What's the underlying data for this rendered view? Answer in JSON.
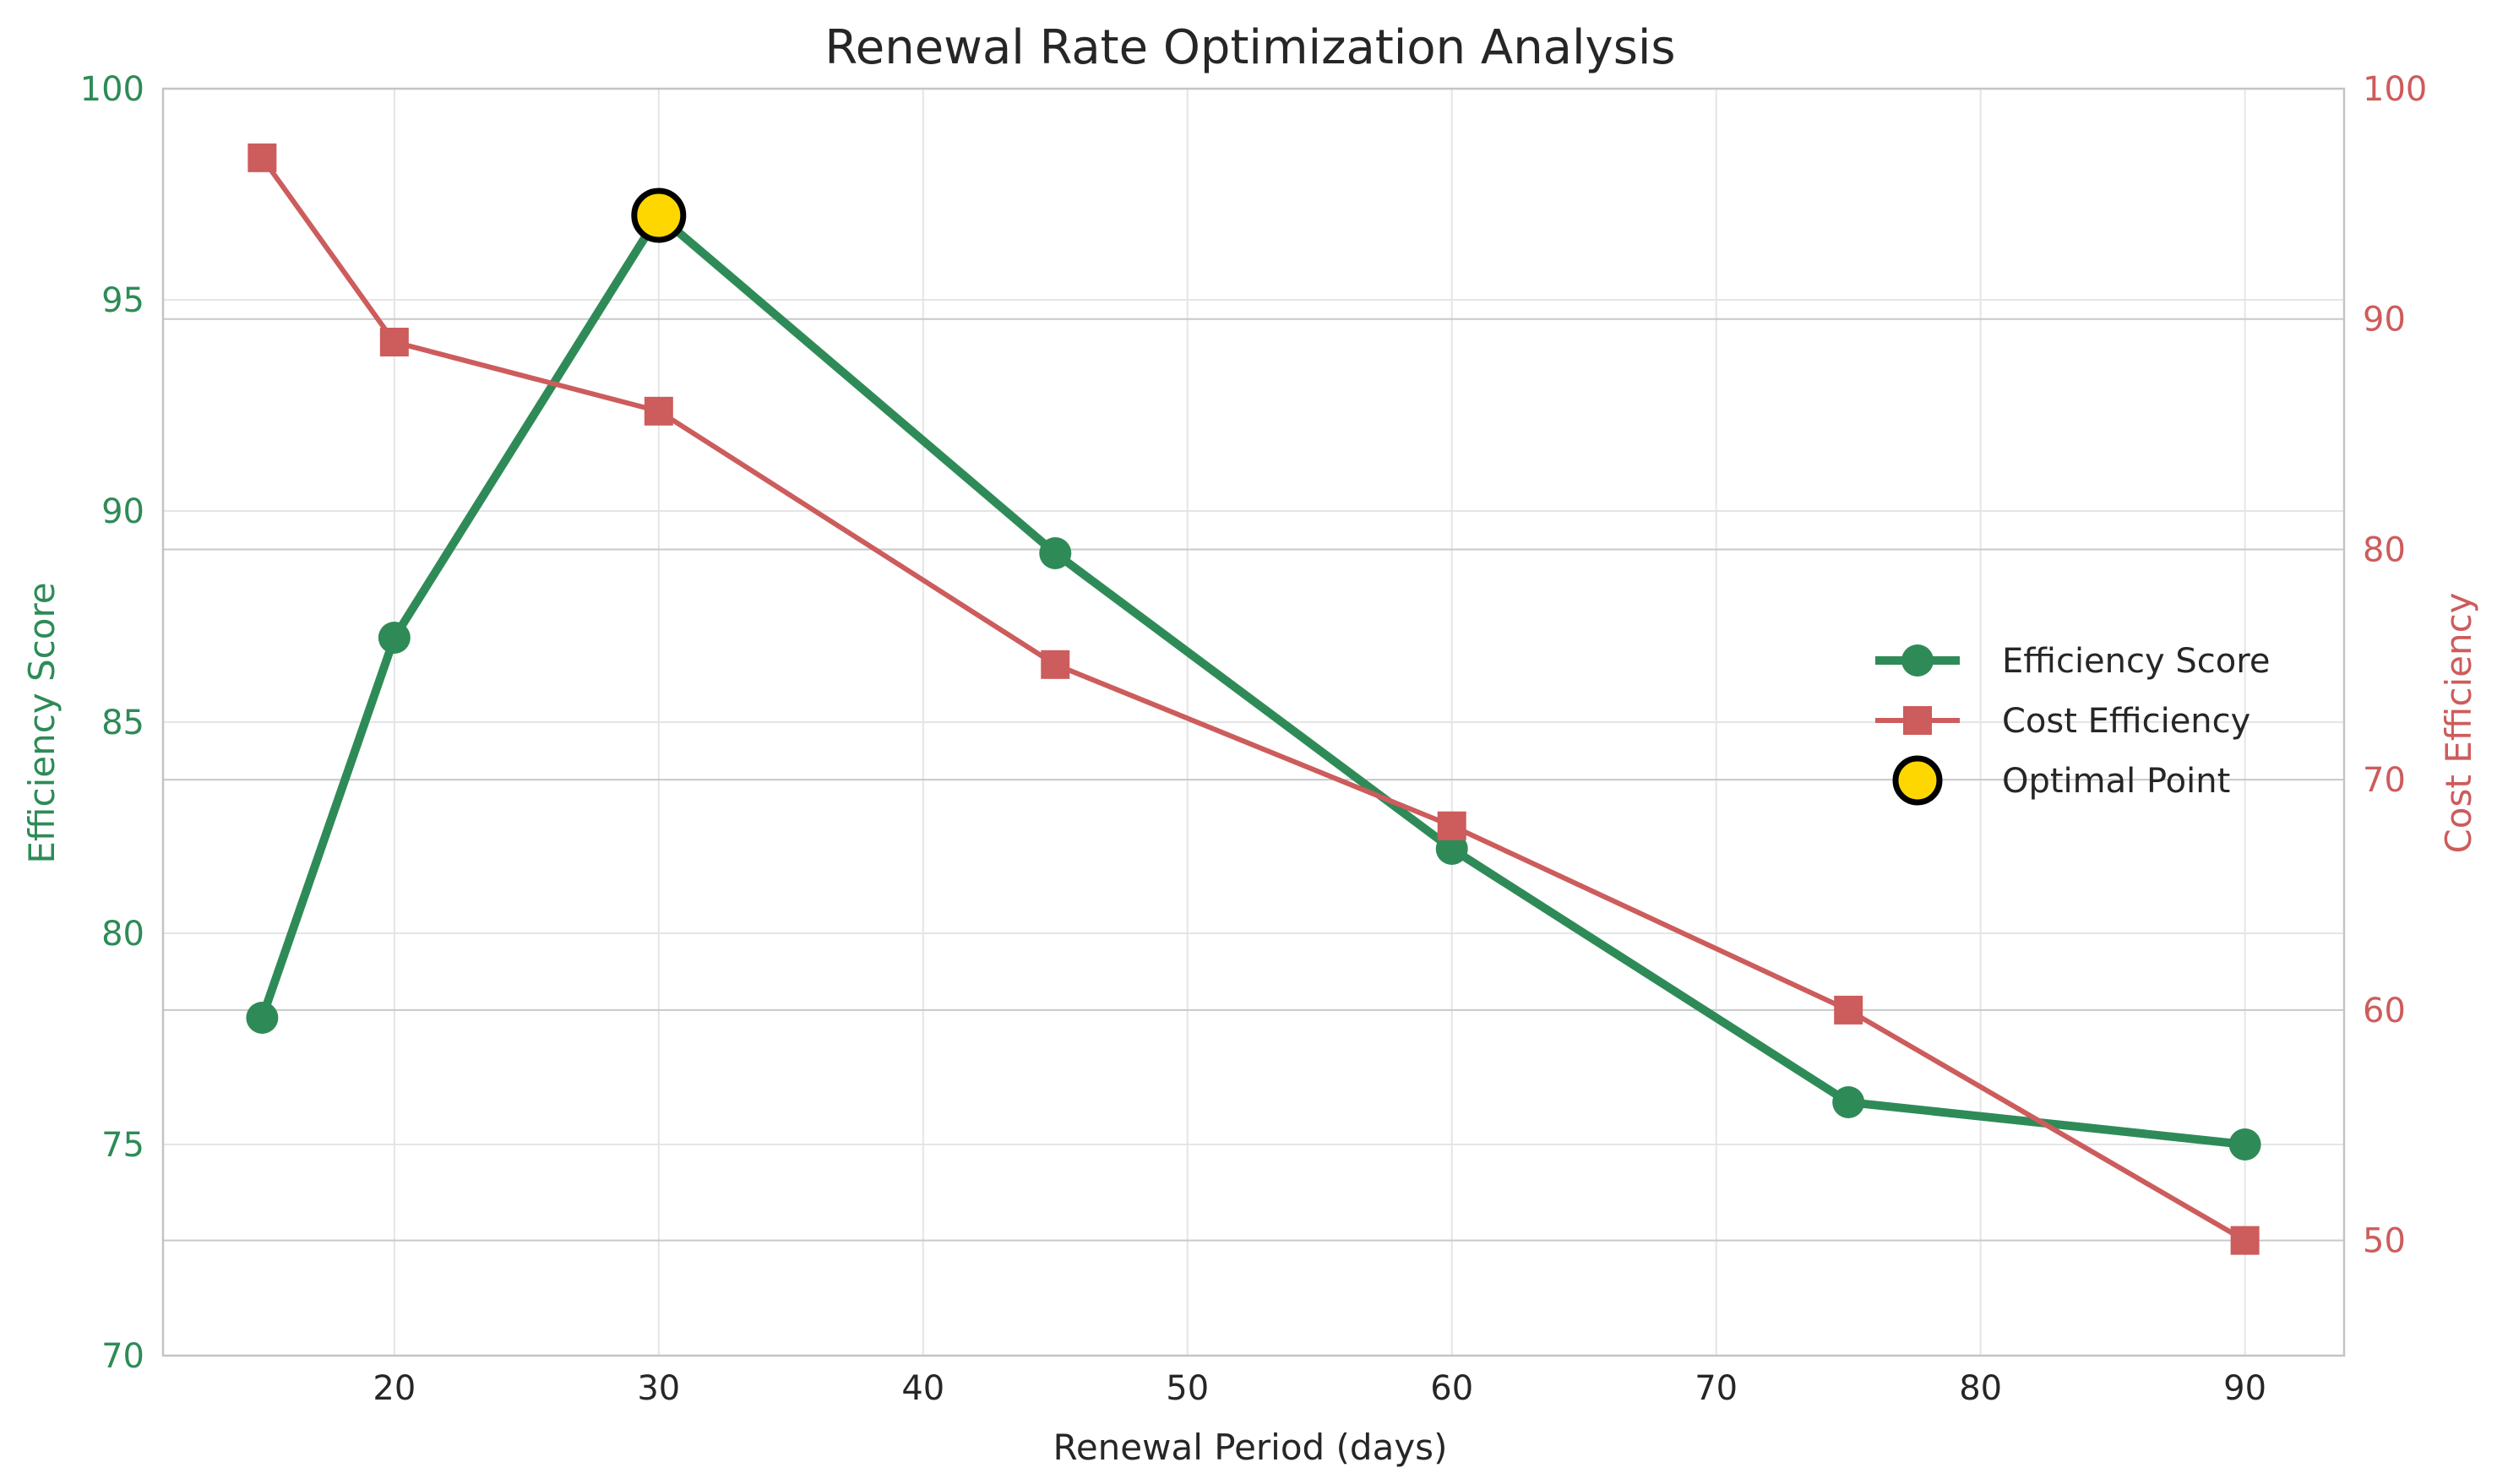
{
  "chart_data": {
    "type": "line",
    "title": "Renewal Rate Optimization Analysis",
    "xlabel": "Renewal Period (days)",
    "ylabel_left": "Efficiency Score",
    "ylabel_right": "Cost Efficiency",
    "x": [
      15,
      20,
      30,
      45,
      60,
      75,
      90
    ],
    "x_ticks": [
      20,
      30,
      40,
      50,
      60,
      70,
      80,
      90
    ],
    "xlim": [
      11.25,
      93.75
    ],
    "ylim_left": [
      70,
      100
    ],
    "yticks_left": [
      70,
      75,
      80,
      85,
      90,
      95,
      100
    ],
    "ylim_right": [
      45,
      100
    ],
    "yticks_right": [
      50,
      60,
      70,
      80,
      90,
      100
    ],
    "grid": true,
    "legend_position": "center-right",
    "series": [
      {
        "name": "Efficiency Score",
        "axis": "left",
        "values": [
          78,
          87,
          97,
          89,
          82,
          76,
          75
        ],
        "color": "#2e8b57",
        "marker": "circle"
      },
      {
        "name": "Cost Efficiency",
        "axis": "right",
        "values": [
          97,
          89,
          86,
          75,
          68,
          60,
          50
        ],
        "color": "#cd5c5c",
        "marker": "square"
      }
    ],
    "optimal_point": {
      "name": "Optimal Point",
      "x": 30,
      "y": 97,
      "color": "#ffd700",
      "edge_color": "#000000"
    }
  }
}
